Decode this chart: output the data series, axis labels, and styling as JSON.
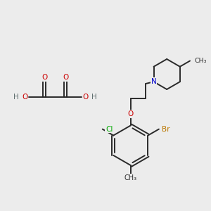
{
  "bg_color": "#ececec",
  "bond_color": "#2a2a2a",
  "bond_width": 1.4,
  "atom_colors": {
    "C": "#2a2a2a",
    "N": "#0000cc",
    "O": "#cc0000",
    "Cl": "#00aa00",
    "Br": "#bb7700",
    "H": "#607070"
  },
  "figsize": [
    3.0,
    3.0
  ],
  "dpi": 100
}
